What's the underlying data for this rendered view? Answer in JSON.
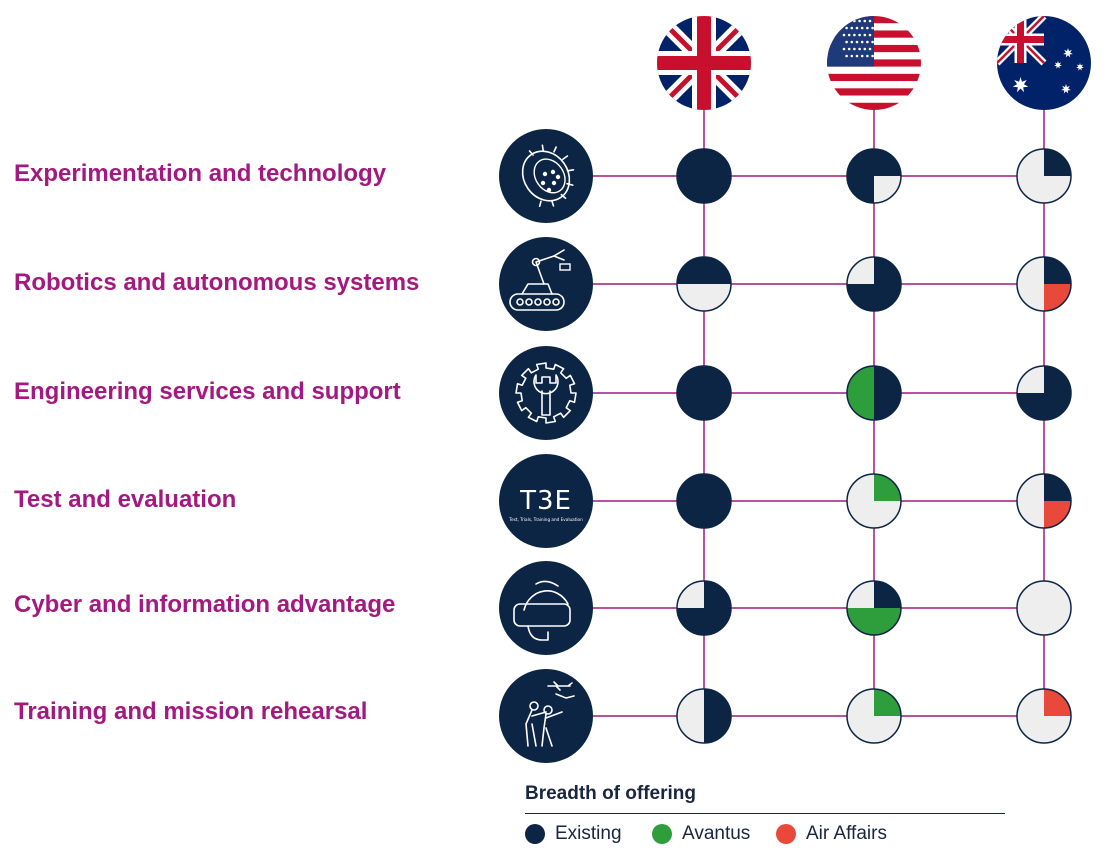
{
  "colors": {
    "existing": "#0d2545",
    "avantus": "#2e9e3c",
    "air_affairs": "#e8493a",
    "empty": "#eeeeee",
    "connector": "#a3197f",
    "label": "#a3197f",
    "icon_bg": "#0d2545"
  },
  "flags": [
    {
      "country": "United Kingdom",
      "icon": "uk-flag-icon"
    },
    {
      "country": "United States",
      "icon": "us-flag-icon"
    },
    {
      "country": "Australia",
      "icon": "australia-flag-icon"
    }
  ],
  "capabilities": [
    {
      "label": "Experimentation and technology",
      "icon": "satellite-module-icon"
    },
    {
      "label": "Robotics and autonomous systems",
      "icon": "robot-vehicle-icon"
    },
    {
      "label": "Engineering services and support",
      "icon": "gear-wrench-icon"
    },
    {
      "label": "Test and evaluation",
      "icon": "t3e-logo-icon",
      "icon_text": "T3E",
      "icon_subtext": "Test, Trials, Training and Evaluation"
    },
    {
      "label": "Cyber and information advantage",
      "icon": "vr-headset-icon"
    },
    {
      "label": "Training and mission rehearsal",
      "icon": "soldiers-drone-icon"
    }
  ],
  "matrix": [
    [
      [
        "E",
        "E",
        "E",
        "E"
      ],
      [
        "E",
        "E",
        "",
        "E"
      ],
      [
        "",
        "E",
        "",
        ""
      ]
    ],
    [
      [
        "E",
        "E",
        "",
        ""
      ],
      [
        "",
        "E",
        "E",
        "E"
      ],
      [
        "",
        "E",
        "A",
        ""
      ]
    ],
    [
      [
        "E",
        "E",
        "E",
        "E"
      ],
      [
        "G",
        "E",
        "E",
        "G"
      ],
      [
        "",
        "E",
        "E",
        "E"
      ]
    ],
    [
      [
        "E",
        "E",
        "E",
        "E"
      ],
      [
        "",
        "G",
        "",
        ""
      ],
      [
        "",
        "E",
        "A",
        ""
      ]
    ],
    [
      [
        "",
        "E",
        "E",
        "E"
      ],
      [
        "",
        "E",
        "G",
        "G"
      ],
      [
        "",
        "",
        "",
        ""
      ]
    ],
    [
      [
        "",
        "E",
        "E",
        ""
      ],
      [
        "",
        "G",
        "",
        ""
      ],
      [
        "",
        "A",
        "",
        ""
      ]
    ]
  ],
  "legend": {
    "title": "Breadth of offering",
    "items": [
      {
        "label": "Existing",
        "color": "#0d2545"
      },
      {
        "label": "Avantus",
        "color": "#2e9e3c"
      },
      {
        "label": "Air Affairs",
        "color": "#e8493a"
      }
    ]
  }
}
